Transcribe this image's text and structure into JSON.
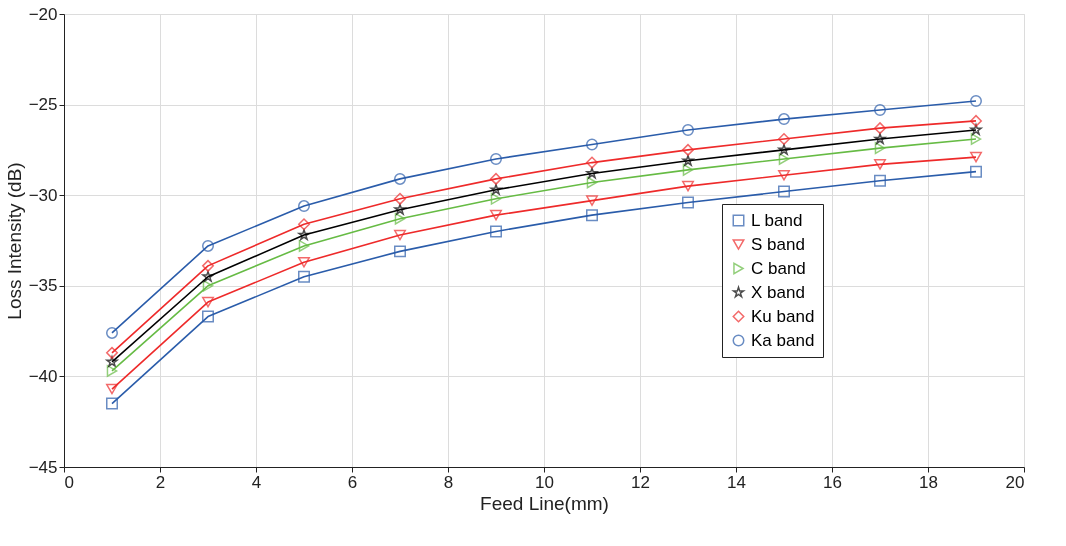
{
  "chart_data": {
    "type": "line",
    "xlabel": "Feed Line(mm)",
    "ylabel": "Loss Intensity (dB)",
    "x": [
      1,
      3,
      5,
      7,
      9,
      11,
      13,
      15,
      17,
      19
    ],
    "series": [
      {
        "name": "L band",
        "color": "#2a5caa",
        "marker": "square",
        "values": [
          -41.5,
          -36.7,
          -34.5,
          -33.1,
          -32.0,
          -31.1,
          -30.4,
          -29.8,
          -29.2,
          -28.7
        ]
      },
      {
        "name": "S band",
        "color": "#ee2a2a",
        "marker": "triangle-down",
        "values": [
          -40.7,
          -35.9,
          -33.7,
          -32.2,
          -31.1,
          -30.3,
          -29.5,
          -28.9,
          -28.3,
          -27.9
        ]
      },
      {
        "name": "C band",
        "color": "#66bb44",
        "marker": "triangle-right",
        "values": [
          -39.7,
          -35.0,
          -32.8,
          -31.3,
          -30.2,
          -29.3,
          -28.6,
          -28.0,
          -27.4,
          -26.9
        ]
      },
      {
        "name": "X band",
        "color": "#000000",
        "marker": "star",
        "values": [
          -39.2,
          -34.5,
          -32.2,
          -30.8,
          -29.7,
          -28.8,
          -28.1,
          -27.5,
          -26.9,
          -26.4
        ]
      },
      {
        "name": "Ku band",
        "color": "#ee2a2a",
        "marker": "diamond",
        "values": [
          -38.7,
          -33.9,
          -31.6,
          -30.2,
          -29.1,
          -28.2,
          -27.5,
          -26.9,
          -26.3,
          -25.9
        ]
      },
      {
        "name": "Ka band",
        "color": "#2a5caa",
        "marker": "circle",
        "values": [
          -37.6,
          -32.8,
          -30.6,
          -29.1,
          -28.0,
          -27.2,
          -26.4,
          -25.8,
          -25.3,
          -24.8
        ]
      }
    ],
    "xlim": [
      0,
      20
    ],
    "xticks": [
      0,
      2,
      4,
      6,
      8,
      10,
      12,
      14,
      16,
      18,
      20
    ],
    "ylim": [
      -45,
      -20
    ],
    "yticks": [
      -45,
      -40,
      -35,
      -30,
      -25,
      -20
    ],
    "grid": true,
    "legend": "right",
    "line_style": "solid"
  }
}
